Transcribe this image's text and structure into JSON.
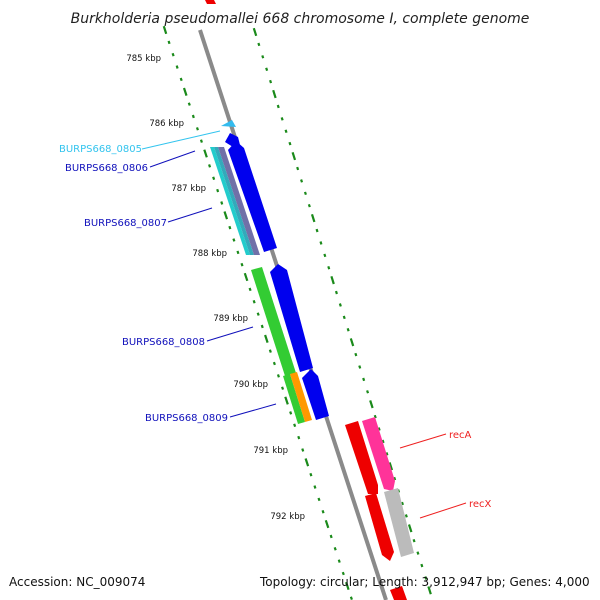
{
  "title": "Burkholderia pseudomallei 668 chromosome I, complete genome",
  "ticks": [
    "785 kbp",
    "786 kbp",
    "787 kbp",
    "788 kbp",
    "789 kbp",
    "790 kbp",
    "791 kbp",
    "792 kbp"
  ],
  "genes": [
    {
      "label": "BURPS668_0805",
      "color": "#33c4ee"
    },
    {
      "label": "BURPS668_0806",
      "color": "#1010bb"
    },
    {
      "label": "BURPS668_0807",
      "color": "#1010bb"
    },
    {
      "label": "BURPS668_0808",
      "color": "#1010bb"
    },
    {
      "label": "BURPS668_0809",
      "color": "#1010bb"
    },
    {
      "label": "recA",
      "color": "#ee2020"
    },
    {
      "label": "recX",
      "color": "#ee2020"
    }
  ],
  "footer": {
    "accession": "Accession: NC_009074",
    "topology": "Topology: circular; Length: 3,912,947 bp; Genes: 4,000"
  },
  "colors": {
    "backbone": "#8a8a8a",
    "tick_marks": "#1a8a1a",
    "forward_blue": "#0000ee",
    "gc_purple": "#7070a8",
    "cyan": "#22cccc",
    "green": "#33cc33",
    "orange": "#ff9900",
    "red": "#ee0000",
    "pink": "#ff3399",
    "gray": "#bbbbbb"
  }
}
